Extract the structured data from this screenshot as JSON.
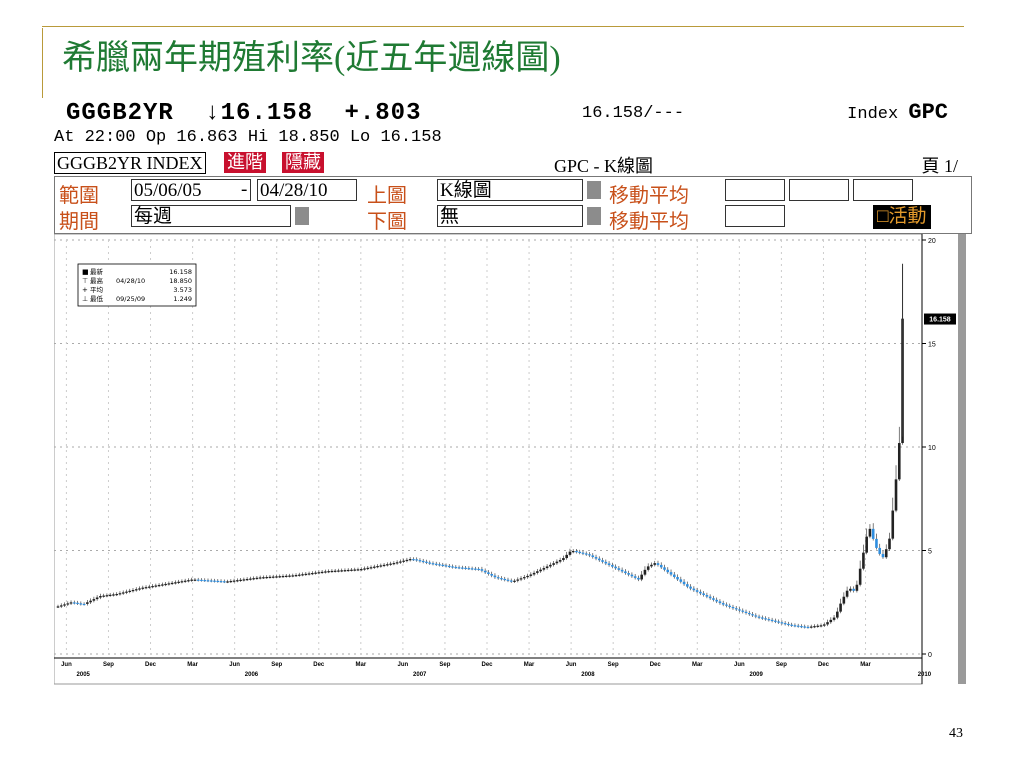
{
  "slide": {
    "title": "希臘兩年期殖利率(近五年週線圖)",
    "page_number": "43"
  },
  "terminal": {
    "ticker": "GGGB2YR",
    "last": "↓16.158",
    "change": "+.803",
    "bid_ask": "16.158/---",
    "index_label": "Index",
    "index_code": "GPC",
    "session": "At 22:00  Op 16.863 Hi 18.850 Lo 16.158",
    "security_name": "GGGB2YR INDEX",
    "btn_advanced": "進階",
    "btn_hide": "隱藏",
    "chart_name": "GPC - K線圖",
    "page_label": "頁 1/",
    "form": {
      "range_label": "範圍",
      "range_start": "05/06/05",
      "range_dash": "-",
      "range_end": "04/28/10",
      "upper_label": "上圖",
      "upper_value": "K線圖",
      "ma_label_1": "移動平均",
      "period_label": "期間",
      "period_value": "每週",
      "lower_label": "下圖",
      "lower_value": "無",
      "ma_label_2": "移動平均",
      "activity_label": "活動"
    },
    "colors": {
      "up": "#2e8ee0",
      "down": "#222222",
      "accent_red": "#c8102e",
      "title_green": "#1f7a33"
    }
  },
  "chart_data": {
    "type": "candlestick",
    "ylim": [
      0,
      20
    ],
    "y_ticks": [
      0,
      5,
      10,
      15,
      20
    ],
    "x_month_labels": [
      "Jun",
      "Sep",
      "Dec",
      "Mar",
      "Jun",
      "Sep",
      "Dec",
      "Mar",
      "Jun",
      "Sep",
      "Dec",
      "Mar",
      "Jun",
      "Sep",
      "Dec",
      "Mar",
      "Jun",
      "Sep",
      "Dec",
      "Mar"
    ],
    "x_year_labels": [
      "2005",
      "2006",
      "2007",
      "2008",
      "2009",
      "2010"
    ],
    "last_value_tag": "16.158",
    "legend": [
      {
        "symbol": "■",
        "label": "最新",
        "date": "",
        "value": "16.158"
      },
      {
        "symbol": "⊤",
        "label": "最高",
        "date": "04/28/10",
        "value": "18.850"
      },
      {
        "symbol": "+",
        "label": "平均",
        "date": "",
        "value": "3.573"
      },
      {
        "symbol": "⊥",
        "label": "最低",
        "date": "09/25/09",
        "value": "1.249"
      }
    ],
    "series": [
      {
        "t": 0.0,
        "v": 2.3
      },
      {
        "t": 0.08,
        "v": 2.5
      },
      {
        "t": 0.15,
        "v": 2.4
      },
      {
        "t": 0.25,
        "v": 2.8
      },
      {
        "t": 0.35,
        "v": 2.9
      },
      {
        "t": 0.5,
        "v": 3.2
      },
      {
        "t": 0.65,
        "v": 3.4
      },
      {
        "t": 0.8,
        "v": 3.6
      },
      {
        "t": 1.0,
        "v": 3.5
      },
      {
        "t": 1.2,
        "v": 3.7
      },
      {
        "t": 1.4,
        "v": 3.8
      },
      {
        "t": 1.6,
        "v": 4.0
      },
      {
        "t": 1.8,
        "v": 4.1
      },
      {
        "t": 2.0,
        "v": 4.4
      },
      {
        "t": 2.1,
        "v": 4.6
      },
      {
        "t": 2.2,
        "v": 4.4
      },
      {
        "t": 2.35,
        "v": 4.2
      },
      {
        "t": 2.5,
        "v": 4.1
      },
      {
        "t": 2.6,
        "v": 3.7
      },
      {
        "t": 2.7,
        "v": 3.5
      },
      {
        "t": 2.8,
        "v": 3.8
      },
      {
        "t": 2.9,
        "v": 4.2
      },
      {
        "t": 3.0,
        "v": 4.6
      },
      {
        "t": 3.05,
        "v": 5.0
      },
      {
        "t": 3.15,
        "v": 4.8
      },
      {
        "t": 3.25,
        "v": 4.4
      },
      {
        "t": 3.35,
        "v": 4.0
      },
      {
        "t": 3.45,
        "v": 3.6
      },
      {
        "t": 3.5,
        "v": 4.2
      },
      {
        "t": 3.55,
        "v": 4.4
      },
      {
        "t": 3.65,
        "v": 3.8
      },
      {
        "t": 3.75,
        "v": 3.2
      },
      {
        "t": 3.85,
        "v": 2.8
      },
      {
        "t": 3.95,
        "v": 2.4
      },
      {
        "t": 4.05,
        "v": 2.1
      },
      {
        "t": 4.15,
        "v": 1.8
      },
      {
        "t": 4.25,
        "v": 1.6
      },
      {
        "t": 4.35,
        "v": 1.4
      },
      {
        "t": 4.45,
        "v": 1.3
      },
      {
        "t": 4.55,
        "v": 1.4
      },
      {
        "t": 4.62,
        "v": 1.8
      },
      {
        "t": 4.66,
        "v": 2.6
      },
      {
        "t": 4.7,
        "v": 3.2
      },
      {
        "t": 4.74,
        "v": 3.0
      },
      {
        "t": 4.78,
        "v": 4.6
      },
      {
        "t": 4.82,
        "v": 6.2
      },
      {
        "t": 4.86,
        "v": 5.2
      },
      {
        "t": 4.9,
        "v": 4.6
      },
      {
        "t": 4.94,
        "v": 5.4
      },
      {
        "t": 4.97,
        "v": 7.5
      },
      {
        "t": 5.0,
        "v": 10.0
      },
      {
        "t": 5.02,
        "v": 16.2
      }
    ],
    "recent_high": 18.85
  }
}
